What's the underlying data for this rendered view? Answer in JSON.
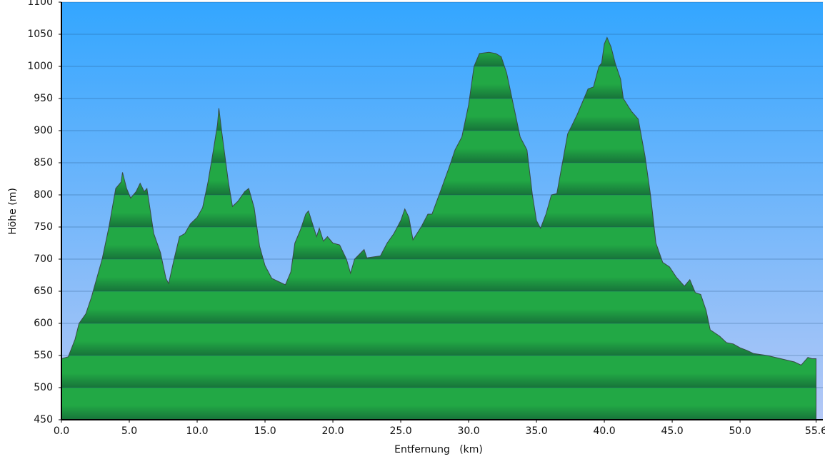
{
  "chart_data": {
    "type": "area",
    "x_label": "Entfernung   (km)",
    "y_label": "Höhe (m)",
    "color": "#22a845",
    "x": [
      0,
      0.5,
      1.0,
      1.3,
      1.8,
      2.2,
      2.6,
      3.0,
      3.5,
      4.0,
      4.4,
      4.5,
      4.8,
      5.1,
      5.5,
      5.8,
      6.1,
      6.3,
      6.8,
      7.3,
      7.7,
      7.9,
      8.3,
      8.7,
      9.1,
      9.5,
      10.0,
      10.4,
      10.8,
      11.2,
      11.5,
      11.6,
      11.8,
      12.3,
      12.6,
      13.0,
      13.5,
      13.8,
      14.2,
      14.6,
      15.0,
      15.5,
      16.0,
      16.5,
      16.9,
      17.2,
      17.6,
      18.0,
      18.2,
      18.5,
      18.8,
      19.0,
      19.3,
      19.6,
      20.0,
      20.5,
      21.0,
      21.3,
      21.6,
      22.3,
      22.5,
      23.5,
      24.0,
      24.5,
      25.0,
      25.3,
      25.6,
      25.9,
      26.5,
      27.0,
      27.3,
      28.0,
      28.6,
      29.0,
      29.5,
      30.0,
      30.4,
      30.8,
      31.5,
      32.0,
      32.4,
      32.8,
      33.3,
      33.8,
      34.3,
      34.7,
      35.0,
      35.3,
      35.7,
      36.1,
      36.5,
      37.0,
      37.3,
      37.7,
      38.0,
      38.5,
      38.8,
      39.2,
      39.6,
      39.8,
      40.0,
      40.2,
      40.5,
      40.8,
      41.2,
      41.4,
      42.0,
      42.5,
      43.0,
      43.4,
      43.8,
      44.3,
      44.8,
      45.3,
      45.9,
      46.3,
      46.7,
      47.1,
      47.5,
      47.8,
      48.5,
      49.0,
      49.5,
      50.0,
      50.5,
      51.0,
      52.0,
      53.0,
      54.0,
      54.5,
      55.0,
      55.3,
      55.6
    ],
    "values": [
      545,
      548,
      575,
      600,
      615,
      640,
      670,
      700,
      750,
      810,
      820,
      835,
      810,
      795,
      805,
      818,
      805,
      810,
      740,
      710,
      670,
      662,
      700,
      735,
      740,
      755,
      765,
      780,
      820,
      870,
      910,
      935,
      900,
      820,
      782,
      790,
      805,
      810,
      780,
      720,
      690,
      670,
      665,
      660,
      680,
      725,
      745,
      770,
      775,
      755,
      735,
      748,
      728,
      735,
      725,
      722,
      700,
      678,
      700,
      715,
      702,
      705,
      725,
      740,
      760,
      778,
      765,
      730,
      750,
      770,
      770,
      810,
      845,
      870,
      890,
      940,
      1000,
      1020,
      1022,
      1020,
      1015,
      990,
      940,
      890,
      870,
      800,
      760,
      748,
      770,
      800,
      802,
      860,
      895,
      912,
      925,
      950,
      965,
      968,
      1000,
      1005,
      1035,
      1045,
      1030,
      1005,
      980,
      950,
      930,
      918,
      860,
      800,
      725,
      695,
      688,
      672,
      658,
      668,
      648,
      645,
      620,
      590,
      580,
      570,
      568,
      562,
      558,
      553,
      550,
      545,
      540,
      535,
      547,
      545,
      545
    ],
    "xlim": [
      0,
      56.1
    ],
    "ylim": [
      450,
      1100
    ],
    "xticks": [
      {
        "value": 0,
        "label": "0.0"
      },
      {
        "value": 5,
        "label": "5.0"
      },
      {
        "value": 10,
        "label": "10.0"
      },
      {
        "value": 15,
        "label": "15.0"
      },
      {
        "value": 20,
        "label": "20.0"
      },
      {
        "value": 25,
        "label": "25.0"
      },
      {
        "value": 30,
        "label": "30.0"
      },
      {
        "value": 35,
        "label": "35.0"
      },
      {
        "value": 40,
        "label": "40.0"
      },
      {
        "value": 45,
        "label": "45.0"
      },
      {
        "value": 50,
        "label": "50.0"
      },
      {
        "value": 55.6,
        "label": "55.6"
      }
    ],
    "yticks": [
      450,
      500,
      550,
      600,
      650,
      700,
      750,
      800,
      850,
      900,
      950,
      1000,
      1050,
      1100
    ],
    "grid": true
  }
}
